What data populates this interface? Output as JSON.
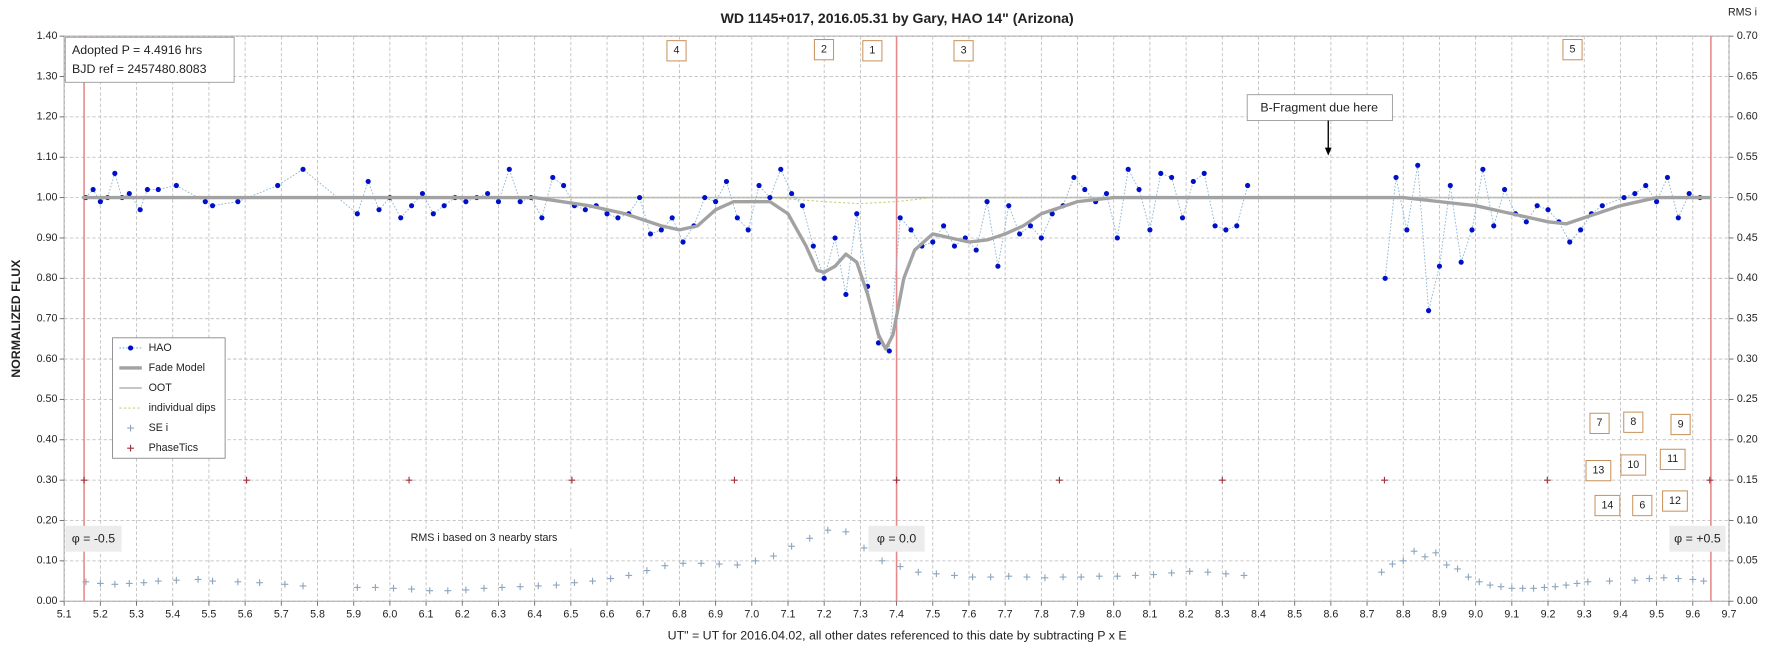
{
  "chart_data": {
    "type": "scatter",
    "title": "WD 1145+017, 2016.05.31  by Gary, HAO 14\" (Arizona)",
    "x_label": "UT\" = UT for 2016.04.02, all other dates referenced to this date by subtracting P x E",
    "y_label": "NORMALIZED FLUX",
    "y2_label": "RMS i",
    "xlim": [
      5.1,
      9.7
    ],
    "ylim": [
      0,
      1.4
    ],
    "y2lim": [
      0,
      0.7
    ],
    "grid": true,
    "legend": "left",
    "xticks": [
      5.1,
      5.2,
      5.3,
      5.4,
      5.5,
      5.6,
      5.7,
      5.8,
      5.9,
      {
        "value": 6,
        "label": "6.0"
      },
      6.1,
      6.2,
      6.3,
      6.4,
      6.5,
      6.6,
      6.7,
      6.8,
      6.9,
      {
        "value": 7,
        "label": "7.0"
      },
      7.1,
      7.2,
      7.3,
      7.4,
      7.5,
      7.6,
      7.7,
      7.8,
      7.9,
      {
        "value": 8,
        "label": "8.0"
      },
      8.1,
      8.2,
      8.3,
      8.4,
      8.5,
      8.6,
      8.7,
      8.8,
      8.9,
      {
        "value": 9,
        "label": "9.0"
      },
      9.1,
      9.2,
      9.3,
      9.4,
      9.5,
      9.6,
      9.7
    ],
    "yticks": [
      {
        "value": 0,
        "label": "0.00"
      },
      {
        "value": 0.1,
        "label": "0.10"
      },
      {
        "value": 0.2,
        "label": "0.20"
      },
      {
        "value": 0.3,
        "label": "0.30"
      },
      {
        "value": 0.4,
        "label": "0.40"
      },
      {
        "value": 0.5,
        "label": "0.50"
      },
      {
        "value": 0.6,
        "label": "0.60"
      },
      {
        "value": 0.7,
        "label": "0.70"
      },
      {
        "value": 0.8,
        "label": "0.80"
      },
      {
        "value": 0.9,
        "label": "0.90"
      },
      {
        "value": 1,
        "label": "1.00"
      },
      {
        "value": 1.1,
        "label": "1.10"
      },
      {
        "value": 1.2,
        "label": "1.20"
      },
      {
        "value": 1.3,
        "label": "1.30"
      },
      {
        "value": 1.4,
        "label": "1.40"
      }
    ],
    "y2ticks": [
      {
        "value": 0,
        "label": "0.00"
      },
      {
        "value": 0.05,
        "label": "0.05"
      },
      {
        "value": 0.1,
        "label": "0.10"
      },
      {
        "value": 0.15,
        "label": "0.15"
      },
      {
        "value": 0.2,
        "label": "0.20"
      },
      {
        "value": 0.25,
        "label": "0.25"
      },
      {
        "value": 0.3,
        "label": "0.30"
      },
      {
        "value": 0.35,
        "label": "0.35"
      },
      {
        "value": 0.4,
        "label": "0.40"
      },
      {
        "value": 0.45,
        "label": "0.45"
      },
      {
        "value": 0.5,
        "label": "0.50"
      },
      {
        "value": 0.55,
        "label": "0.55"
      },
      {
        "value": 0.6,
        "label": "0.60"
      },
      {
        "value": 0.65,
        "label": "0.65"
      },
      {
        "value": 0.7,
        "label": "0.70"
      }
    ],
    "series": [
      {
        "name": "HAO",
        "style": "dots-dotted-line",
        "color": "#0010c8",
        "line_color": "#8ab4d4",
        "x": [
          5.16,
          5.18,
          5.2,
          5.22,
          5.24,
          5.26,
          5.28,
          5.31,
          5.33,
          5.36,
          5.41,
          5.49,
          5.51,
          5.58,
          5.69,
          5.76,
          5.91,
          5.94,
          5.97,
          6.0,
          6.03,
          6.06,
          6.09,
          6.12,
          6.15,
          6.18,
          6.21,
          6.24,
          6.27,
          6.3,
          6.33,
          6.36,
          6.39,
          6.42,
          6.45,
          6.48,
          6.51,
          6.54,
          6.57,
          6.6,
          6.63,
          6.66,
          6.69,
          6.72,
          6.75,
          6.78,
          6.81,
          6.84,
          6.87,
          6.9,
          6.93,
          6.96,
          6.99,
          7.02,
          7.05,
          7.08,
          7.11,
          7.14,
          7.17,
          7.2,
          7.23,
          7.26,
          7.29,
          7.32,
          7.35,
          7.38,
          7.41,
          7.44,
          7.47,
          7.5,
          7.53,
          7.56,
          7.59,
          7.62,
          7.65,
          7.68,
          7.71,
          7.74,
          7.77,
          7.8,
          7.83,
          7.86,
          7.89,
          7.92,
          7.95,
          7.98,
          8.01,
          8.04,
          8.07,
          8.1,
          8.13,
          8.16,
          8.19,
          8.22,
          8.25,
          8.28,
          8.31,
          8.34,
          8.37,
          8.75,
          8.78,
          8.81,
          8.84,
          8.87,
          8.9,
          8.93,
          8.96,
          8.99,
          9.02,
          9.05,
          9.08,
          9.11,
          9.14,
          9.17,
          9.2,
          9.23,
          9.26,
          9.29,
          9.32,
          9.35,
          9.41,
          9.44,
          9.47,
          9.5,
          9.53,
          9.56,
          9.59,
          9.62
        ],
        "values": [
          1.0,
          1.02,
          0.99,
          1.0,
          1.06,
          1.0,
          1.01,
          0.97,
          1.02,
          1.02,
          1.03,
          0.99,
          0.98,
          0.99,
          1.03,
          1.07,
          0.96,
          1.04,
          0.97,
          1.0,
          0.95,
          0.98,
          1.01,
          0.96,
          0.98,
          1.0,
          0.99,
          1.0,
          1.01,
          0.99,
          1.07,
          0.99,
          1.0,
          0.95,
          1.05,
          1.03,
          0.98,
          0.97,
          0.98,
          0.96,
          0.95,
          0.96,
          1.0,
          0.91,
          0.92,
          0.95,
          0.89,
          0.93,
          1.0,
          0.99,
          1.04,
          0.95,
          0.92,
          1.03,
          1.0,
          1.07,
          1.01,
          0.98,
          0.88,
          0.8,
          0.9,
          0.76,
          0.96,
          0.78,
          0.64,
          0.62,
          0.95,
          0.92,
          0.88,
          0.89,
          0.93,
          0.88,
          0.9,
          0.87,
          0.99,
          0.83,
          0.98,
          0.91,
          0.93,
          0.9,
          0.96,
          0.98,
          1.05,
          1.02,
          0.99,
          1.01,
          0.9,
          1.07,
          1.02,
          0.92,
          1.06,
          1.05,
          0.95,
          1.04,
          1.06,
          0.93,
          0.92,
          0.93,
          1.03,
          0.8,
          1.05,
          0.92,
          1.08,
          0.72,
          0.83,
          1.03,
          0.84,
          0.92,
          1.07,
          0.93,
          1.02,
          0.96,
          0.94,
          0.98,
          0.97,
          0.94,
          0.89,
          0.92,
          0.96,
          0.98,
          1.0,
          1.01,
          1.03,
          0.99,
          1.05,
          0.95,
          1.01,
          1.0
        ]
      },
      {
        "name": "Fade Model",
        "style": "thick-line",
        "color": "#a2a2a2",
        "x": [
          5.15,
          6.4,
          6.55,
          6.65,
          6.75,
          6.8,
          6.85,
          6.9,
          6.95,
          7.05,
          7.1,
          7.15,
          7.18,
          7.2,
          7.23,
          7.26,
          7.29,
          7.32,
          7.35,
          7.37,
          7.39,
          7.42,
          7.45,
          7.5,
          7.55,
          7.6,
          7.65,
          7.7,
          7.75,
          7.8,
          7.9,
          8.0,
          8.8,
          8.9,
          9.0,
          9.1,
          9.2,
          9.25,
          9.3,
          9.4,
          9.5,
          9.65
        ],
        "values": [
          1.0,
          1.0,
          0.98,
          0.96,
          0.93,
          0.92,
          0.93,
          0.97,
          0.99,
          0.99,
          0.96,
          0.88,
          0.82,
          0.815,
          0.83,
          0.86,
          0.84,
          0.76,
          0.66,
          0.625,
          0.66,
          0.8,
          0.87,
          0.91,
          0.9,
          0.89,
          0.895,
          0.91,
          0.93,
          0.96,
          0.99,
          1.0,
          1.0,
          0.99,
          0.98,
          0.96,
          0.94,
          0.935,
          0.95,
          0.98,
          1.0,
          1.0
        ]
      },
      {
        "name": "OOT",
        "style": "line",
        "color": "#b4b4b4",
        "x": [
          5.15,
          9.65
        ],
        "values": [
          1.0,
          1.0
        ]
      },
      {
        "name": "individual dips",
        "style": "dotted-line",
        "color": "#c4d27a",
        "x": [
          5.15,
          7.05,
          7.2,
          7.3,
          7.4,
          7.5,
          9.65
        ],
        "values": [
          1.0,
          1.0,
          0.99,
          0.985,
          0.99,
          1.0,
          1.0
        ]
      },
      {
        "name": "SE i",
        "style": "plus",
        "axis": "y2",
        "color": "#8ea6bf",
        "x": [
          5.16,
          5.2,
          5.24,
          5.28,
          5.32,
          5.36,
          5.41,
          5.47,
          5.51,
          5.58,
          5.64,
          5.71,
          5.76,
          5.91,
          5.96,
          6.01,
          6.06,
          6.11,
          6.16,
          6.21,
          6.26,
          6.31,
          6.36,
          6.41,
          6.46,
          6.51,
          6.56,
          6.61,
          6.66,
          6.71,
          6.76,
          6.81,
          6.86,
          6.91,
          6.96,
          7.01,
          7.06,
          7.11,
          7.16,
          7.21,
          7.26,
          7.31,
          7.36,
          7.41,
          7.46,
          7.51,
          7.56,
          7.61,
          7.66,
          7.71,
          7.76,
          7.81,
          7.86,
          7.91,
          7.96,
          8.01,
          8.06,
          8.11,
          8.16,
          8.21,
          8.26,
          8.31,
          8.36,
          8.74,
          8.77,
          8.8,
          8.83,
          8.86,
          8.89,
          8.92,
          8.95,
          8.98,
          9.01,
          9.04,
          9.07,
          9.1,
          9.13,
          9.16,
          9.19,
          9.22,
          9.25,
          9.28,
          9.31,
          9.37,
          9.44,
          9.48,
          9.52,
          9.56,
          9.6,
          9.63
        ],
        "values": [
          0.024,
          0.022,
          0.021,
          0.022,
          0.023,
          0.025,
          0.026,
          0.027,
          0.025,
          0.024,
          0.023,
          0.021,
          0.019,
          0.017,
          0.017,
          0.016,
          0.015,
          0.013,
          0.013,
          0.014,
          0.016,
          0.017,
          0.018,
          0.019,
          0.02,
          0.023,
          0.025,
          0.028,
          0.032,
          0.038,
          0.044,
          0.047,
          0.047,
          0.046,
          0.045,
          0.05,
          0.056,
          0.068,
          0.078,
          0.088,
          0.086,
          0.066,
          0.05,
          0.043,
          0.036,
          0.034,
          0.032,
          0.03,
          0.03,
          0.031,
          0.03,
          0.029,
          0.03,
          0.03,
          0.031,
          0.031,
          0.032,
          0.033,
          0.035,
          0.037,
          0.036,
          0.034,
          0.032,
          0.036,
          0.046,
          0.05,
          0.062,
          0.055,
          0.06,
          0.045,
          0.04,
          0.03,
          0.024,
          0.02,
          0.018,
          0.016,
          0.016,
          0.016,
          0.017,
          0.018,
          0.02,
          0.022,
          0.024,
          0.025,
          0.026,
          0.028,
          0.029,
          0.028,
          0.027,
          0.025
        ]
      },
      {
        "name": "PhaseTics",
        "style": "plus",
        "color": "#a0303a",
        "x": [
          5.155,
          5.604,
          6.053,
          6.503,
          6.952,
          7.4,
          7.85,
          8.3,
          8.748,
          9.198,
          9.647
        ],
        "values": [
          0.3,
          0.3,
          0.3,
          0.3,
          0.3,
          0.3,
          0.3,
          0.3,
          0.3,
          0.3,
          0.3
        ]
      }
    ],
    "phase_markers": [
      {
        "x": 5.155,
        "label": "φ = -0.5"
      },
      {
        "x": 7.4,
        "label": "φ = 0.0"
      },
      {
        "x": 9.65,
        "label": "φ = +0.5"
      }
    ],
    "info_box": [
      "Adopted P = 4.4916 hrs",
      "BJD ref = 2457480.8083"
    ],
    "fragment_note": "B-Fragment due here",
    "rms_note": "RMS i based on 3 nearby stars",
    "dip_labels": [
      "4",
      "2",
      "1",
      "3",
      "5",
      "7",
      "8",
      "9",
      "13",
      "10",
      "11",
      "14",
      "6",
      "12"
    ]
  }
}
